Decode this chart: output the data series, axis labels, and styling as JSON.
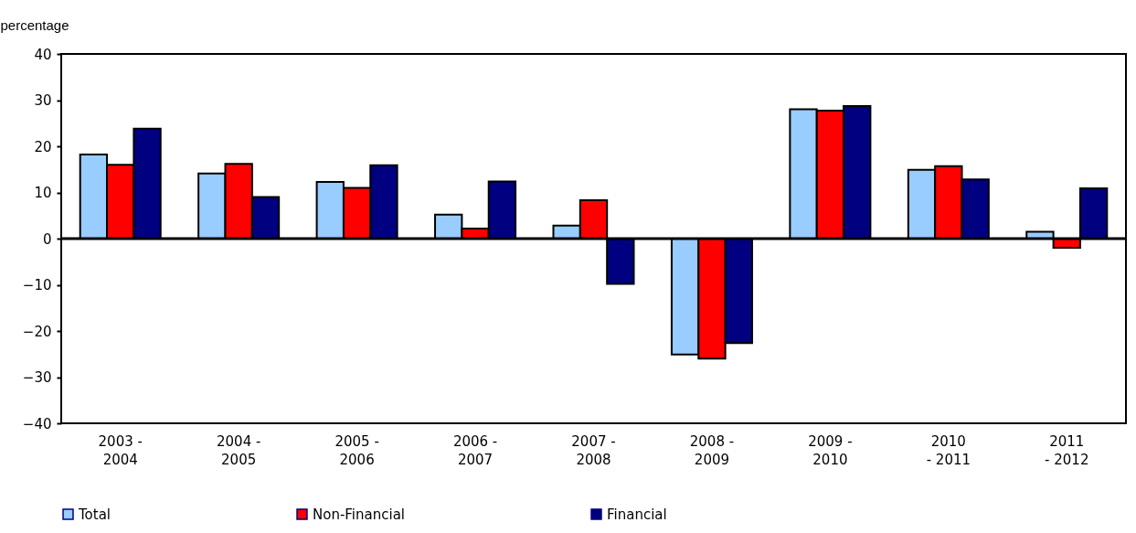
{
  "chart_data": {
    "type": "bar",
    "ylabel": "percentage",
    "categories": [
      "2003 -\n2004",
      "2004 -\n2005",
      "2005 -\n2006",
      "2006 -\n2007",
      "2007 -\n2008",
      "2008 -\n2009",
      "2009 -\n2010",
      "2010\n- 2011",
      "2011\n- 2012"
    ],
    "series": [
      {
        "name": "Total",
        "color": "#99ccff",
        "values": [
          18.2,
          14.1,
          12.3,
          5.2,
          2.8,
          -25.1,
          28.0,
          14.9,
          1.5
        ]
      },
      {
        "name": "Non-Financial",
        "color": "#ff0000",
        "values": [
          16.0,
          16.2,
          11.0,
          2.2,
          8.3,
          -26.0,
          27.7,
          15.7,
          -2.0
        ]
      },
      {
        "name": "Financial",
        "color": "#000080",
        "values": [
          23.8,
          9.0,
          15.9,
          12.4,
          -9.8,
          -22.6,
          28.7,
          12.8,
          10.9
        ]
      }
    ],
    "ylim": [
      -40,
      40
    ],
    "yticks": [
      -40,
      -30,
      -20,
      -10,
      0,
      10,
      20,
      30,
      40
    ],
    "legend": "bottom"
  }
}
